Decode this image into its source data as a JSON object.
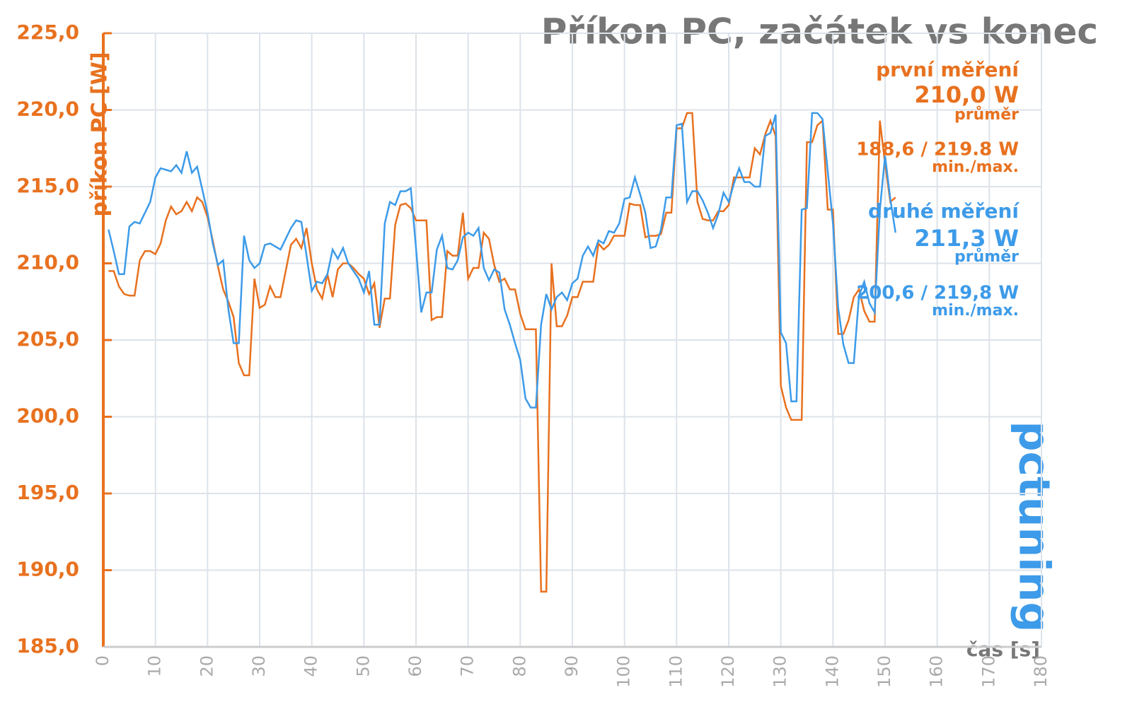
{
  "chart_data": {
    "type": "line",
    "title": "Příkon PC, začátek vs konec",
    "ylabel": "příkon PC [W]",
    "xlabel": "čas [s]",
    "logo": "pctuning",
    "annotations": [
      {
        "text": "první měření",
        "color": "#e8711f"
      },
      {
        "text": "210,0 W",
        "color": "#e8711f"
      },
      {
        "text": "průměr",
        "color": "#e8711f"
      },
      {
        "text": "188,6 / 219.8 W",
        "color": "#e8711f"
      },
      {
        "text": "min./max.",
        "color": "#e8711f"
      },
      {
        "text": "druhé měření",
        "color": "#3d9be9"
      },
      {
        "text": "211,3 W",
        "color": "#3d9be9"
      },
      {
        "text": "průměr",
        "color": "#3d9be9"
      },
      {
        "text": "200,6 / 219,8 W",
        "color": "#3d9be9"
      },
      {
        "text": "min./max.",
        "color": "#3d9be9"
      }
    ],
    "xlim": [
      0,
      180
    ],
    "xticks": [
      0,
      10,
      20,
      30,
      40,
      50,
      60,
      70,
      80,
      90,
      100,
      110,
      120,
      130,
      140,
      150,
      160,
      170,
      180
    ],
    "ylim": [
      185,
      225
    ],
    "yticks": [
      {
        "value": 185,
        "label": "185,0"
      },
      {
        "value": 190,
        "label": "190,0"
      },
      {
        "value": 195,
        "label": "195,0"
      },
      {
        "value": 200,
        "label": "200,0"
      },
      {
        "value": 205,
        "label": "205,0"
      },
      {
        "value": 210,
        "label": "210,0"
      },
      {
        "value": 215,
        "label": "215,0"
      },
      {
        "value": 220,
        "label": "220,0"
      },
      {
        "value": 225,
        "label": "225,0"
      }
    ],
    "grid": true,
    "x": [
      1,
      2,
      3,
      4,
      5,
      6,
      7,
      8,
      9,
      10,
      11,
      12,
      13,
      14,
      15,
      16,
      17,
      18,
      19,
      20,
      21,
      22,
      23,
      24,
      25,
      26,
      27,
      28,
      29,
      30,
      31,
      32,
      33,
      34,
      35,
      36,
      37,
      38,
      39,
      40,
      41,
      42,
      43,
      44,
      45,
      46,
      47,
      48,
      49,
      50,
      51,
      52,
      53,
      54,
      55,
      56,
      57,
      58,
      59,
      60,
      61,
      62,
      63,
      64,
      65,
      66,
      67,
      68,
      69,
      70,
      71,
      72,
      73,
      74,
      75,
      76,
      77,
      78,
      79,
      80,
      81,
      82,
      83,
      84,
      85,
      86,
      87,
      88,
      89,
      90,
      91,
      92,
      93,
      94,
      95,
      96,
      97,
      98,
      99,
      100,
      101,
      102,
      103,
      104,
      105,
      106,
      107,
      108,
      109,
      110,
      111,
      112,
      113,
      114,
      115,
      116,
      117,
      118,
      119,
      120,
      121,
      122,
      123,
      124,
      125,
      126,
      127,
      128,
      129,
      130,
      131,
      132,
      133,
      134,
      135,
      136,
      137,
      138,
      139,
      140,
      141,
      142,
      143,
      144,
      145,
      146,
      147,
      148,
      149,
      150,
      151,
      152
    ],
    "series": [
      {
        "name": "první měření",
        "color": "#e8711f",
        "values": [
          209.5,
          209.5,
          208.5,
          208,
          207.9,
          207.9,
          210.2,
          210.8,
          210.8,
          210.6,
          211.3,
          212.8,
          213.7,
          213.2,
          213.4,
          214.0,
          213.4,
          214.3,
          214.0,
          213.0,
          211.5,
          209.8,
          208.3,
          207.5,
          206.5,
          203.5,
          202.7,
          202.7,
          209.0,
          207.1,
          207.3,
          208.5,
          207.8,
          207.8,
          209.5,
          211.2,
          211.6,
          211.0,
          212.3,
          210.0,
          208.3,
          207.7,
          209.3,
          207.8,
          209.6,
          210.0,
          210.0,
          209.7,
          209.3,
          209.0,
          208.0,
          208.7,
          205.8,
          207.7,
          207.7,
          212.5,
          213.8,
          213.9,
          213.6,
          212.8,
          212.8,
          212.8,
          206.3,
          206.5,
          206.5,
          210.8,
          210.5,
          210.5,
          213.3,
          209.0,
          209.7,
          209.7,
          212.0,
          211.6,
          209.9,
          208.8,
          209.0,
          208.3,
          208.3,
          206.7,
          205.7,
          205.7,
          205.7,
          188.6,
          188.6,
          210.0,
          205.9,
          205.9,
          206.6,
          207.8,
          207.8,
          208.8,
          208.8,
          208.8,
          211.3,
          210.9,
          211.2,
          211.8,
          211.8,
          211.8,
          213.9,
          213.8,
          213.8,
          211.7,
          211.8,
          211.8,
          211.9,
          213.3,
          213.3,
          218.8,
          218.8,
          219.8,
          219.8,
          214.0,
          212.9,
          212.8,
          212.8,
          213.4,
          213.4,
          213.8,
          215.6,
          215.6,
          215.6,
          215.6,
          217.5,
          217.1,
          218.4,
          219.3,
          218.3,
          202.0,
          200.6,
          199.8,
          199.8,
          199.8,
          217.9,
          217.9,
          219.0,
          219.3,
          213.5,
          213.5,
          205.4,
          205.4,
          206.3,
          207.8,
          208.3,
          206.9,
          206.2,
          206.2,
          219.3,
          216.5,
          214.0,
          214.3
        ]
      },
      {
        "name": "druhé měření",
        "color": "#3d9be9",
        "values": [
          212.2,
          210.8,
          209.3,
          209.3,
          212.4,
          212.7,
          212.6,
          213.3,
          214.0,
          215.6,
          216.2,
          216.1,
          216.0,
          216.4,
          215.9,
          217.3,
          215.9,
          216.3,
          214.8,
          213.3,
          211.3,
          209.9,
          210.2,
          207.0,
          204.8,
          204.8,
          211.8,
          210.2,
          209.7,
          210.0,
          211.2,
          211.3,
          211.1,
          210.9,
          211.6,
          212.3,
          212.8,
          212.7,
          210.5,
          208.2,
          208.8,
          208.7,
          209.3,
          210.9,
          210.3,
          211.0,
          210.0,
          209.5,
          209.0,
          208.1,
          209.5,
          206.0,
          206.0,
          212.6,
          214.0,
          213.8,
          214.7,
          214.7,
          214.9,
          211.0,
          206.8,
          208.1,
          208.1,
          210.9,
          211.8,
          209.7,
          209.6,
          210.2,
          211.7,
          212.0,
          211.8,
          212.3,
          209.7,
          208.9,
          209.6,
          209.4,
          207.0,
          206.0,
          204.8,
          203.7,
          201.2,
          200.6,
          200.6,
          206.0,
          208.0,
          207.0,
          207.8,
          208.1,
          207.6,
          208.7,
          209.0,
          210.5,
          211.1,
          210.5,
          211.5,
          211.3,
          212.1,
          212.0,
          212.6,
          214.2,
          214.3,
          215.6,
          214.5,
          213.3,
          211.0,
          211.1,
          212.2,
          214.3,
          214.3,
          219.0,
          219.1,
          214.0,
          214.7,
          214.7,
          214.1,
          213.3,
          212.3,
          213.2,
          214.6,
          214.0,
          215.2,
          216.2,
          215.3,
          215.3,
          215.0,
          215.0,
          218.3,
          218.5,
          219.7,
          205.5,
          204.8,
          201.0,
          201.0,
          213.5,
          213.6,
          219.8,
          219.8,
          219.4,
          216.0,
          212.6,
          207.1,
          204.7,
          203.5,
          203.5,
          207.9,
          208.8,
          207.4,
          206.8,
          213.5,
          217.0,
          214.2,
          212.0
        ]
      }
    ]
  }
}
